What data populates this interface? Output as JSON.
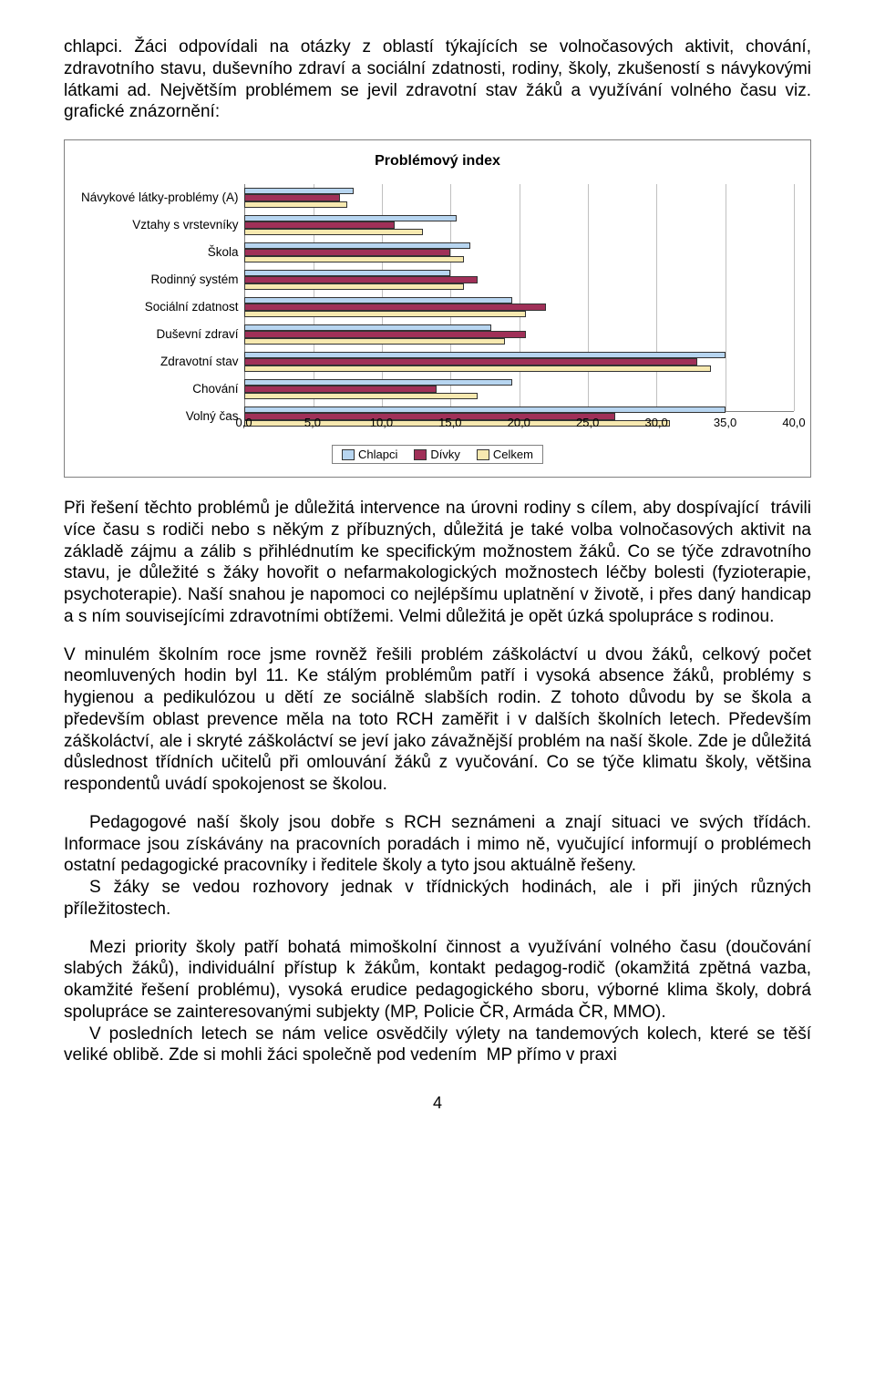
{
  "para1": "chlapci. Žáci odpovídali na otázky z oblastí týkajících se volnočasových aktivit, chování, zdravotního stavu, duševního zdraví a sociální zdatnosti, rodiny, školy, zkušeností s návykovými látkami ad. Největším problémem se jevil zdravotní stav žáků a využívání volného času viz. grafické znázornění:",
  "para2": "Při řešení těchto problémů je důležitá intervence na úrovni rodiny s cílem, aby dospívající  trávili více času s rodiči nebo s někým z příbuzných, důležitá je také volba volnočasových aktivit na základě zájmu a zálib s přihlédnutím ke specifickým možnostem žáků. Co se týče zdravotního stavu, je důležité s žáky hovořit o nefarmakologických možnostech léčby bolesti (fyzioterapie, psychoterapie). Naší snahou je napomoci co nejlépšímu uplatnění v životě, i přes daný handicap a s ním souvisejícími zdravotními obtížemi. Velmi důležitá je opět úzká spolupráce s rodinou.",
  "para3": "V minulém školním roce jsme rovněž řešili problém záškoláctví u dvou žáků, celkový počet neomluvených hodin byl 11. Ke stálým problémům patří i vysoká absence žáků, problémy s hygienou a pedikulózou u dětí ze sociálně slabších rodin. Z tohoto důvodu by se škola a především oblast prevence měla na toto RCH zaměřit i v dalších školních letech. Především záškoláctví, ale i skryté záškoláctví se jeví jako závažnější problém na naší škole. Zde je důležitá důslednost třídních učitelů při omlouvání žáků z vyučování. Co se týče klimatu školy, většina respondentů uvádí spokojenost se školou.",
  "para4": "Pedagogové naší školy jsou dobře s RCH seznámeni a znají situaci ve svých třídách. Informace jsou získávány na pracovních poradách i mimo ně, vyučující informují o problémech ostatní pedagogické pracovníky i ředitele školy a tyto jsou aktuálně řešeny.",
  "para5": "S žáky se vedou rozhovory jednak v třídnických hodinách, ale i při jiných různých příležitostech.",
  "para6": "Mezi priority školy patří bohatá mimoškolní činnost a využívání volného času (doučování slabých žáků), individuální přístup k žákům, kontakt pedagog-rodič (okamžitá zpětná vazba, okamžité řešení problému), vysoká erudice pedagogického sboru, výborné klima školy, dobrá spolupráce se zainteresovanými subjekty (MP, Policie ČR, Armáda ČR, MMO).",
  "para7": "V posledních letech se nám velice osvědčily výlety na tandemových kolech, které se těší veliké oblibě. Zde si mohli žáci společně pod vedením  MP přímo v praxi",
  "page_number": "4",
  "chart": {
    "type": "horizontal_grouped_bar",
    "title": "Problémový index",
    "categories": [
      "Návykové látky-problémy (A)",
      "Vztahy s vrstevníky",
      "Škola",
      "Rodinný systém",
      "Sociální zdatnost",
      "Duševní zdraví",
      "Zdravotní stav",
      "Chování",
      "Volný čas"
    ],
    "series": [
      {
        "name": "Chlapci",
        "color": "#b7d5f0",
        "values": [
          8.0,
          15.5,
          16.5,
          15.0,
          19.5,
          18.0,
          35.0,
          19.5,
          35.0
        ]
      },
      {
        "name": "Dívky",
        "color": "#a03058",
        "values": [
          7.0,
          11.0,
          15.0,
          17.0,
          22.0,
          20.5,
          33.0,
          14.0,
          27.0
        ]
      },
      {
        "name": "Celkem",
        "color": "#f7e9b0",
        "values": [
          7.5,
          13.0,
          16.0,
          16.0,
          20.5,
          19.0,
          34.0,
          17.0,
          31.0
        ]
      }
    ],
    "xmin": 0.0,
    "xmax": 40.0,
    "xticks": [
      "0,0",
      "5,0",
      "10,0",
      "15,0",
      "20,0",
      "25,0",
      "30,0",
      "35,0",
      "40,0"
    ],
    "xtick_values": [
      0,
      5,
      10,
      15,
      20,
      25,
      30,
      35,
      40
    ],
    "background_color": "#ffffff",
    "grid_color": "#c0c0c0",
    "axis_color": "#808080",
    "title_fontsize": 16,
    "label_fontsize": 13.5,
    "tick_fontsize": 13,
    "bar_border_color": "#333333",
    "legend_border_color": "#808080"
  }
}
